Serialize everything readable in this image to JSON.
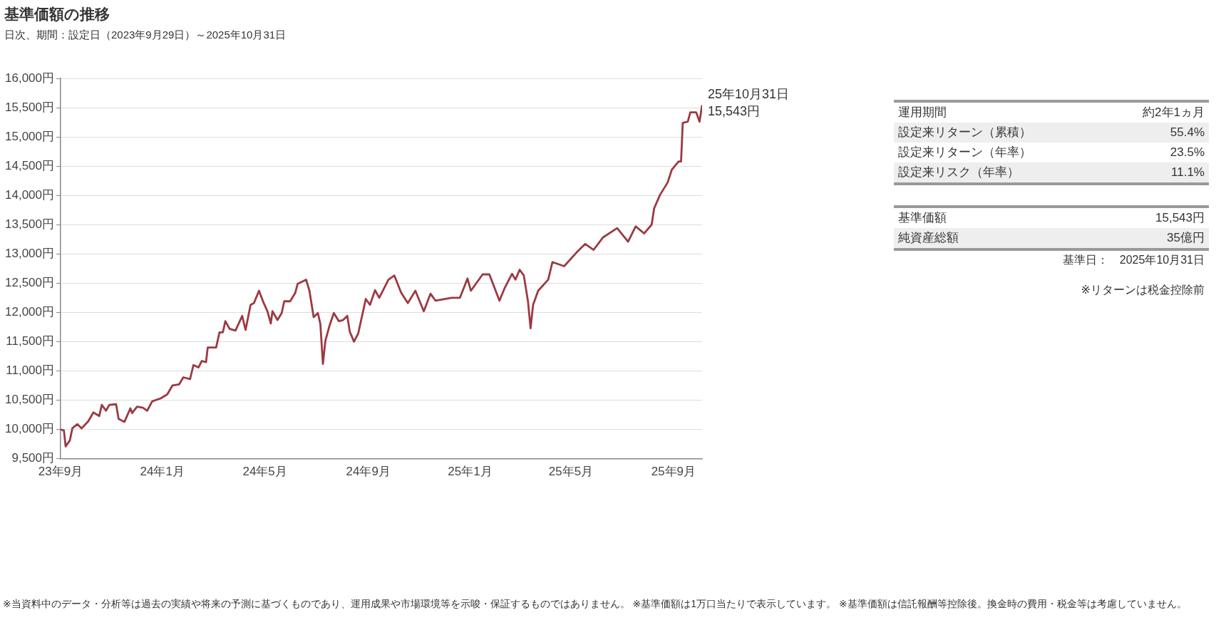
{
  "chart_data": [
    {
      "type": "line",
      "title": "基準価額の推移",
      "subtitle": "日次、期間：設定日（2023年9月29日）～2025年10月31日",
      "series": [
        {
          "color": "#9b3a42",
          "x": [
            "2023-09-29",
            "2023-10-03",
            "2023-10-05",
            "2023-10-10",
            "2023-10-13",
            "2023-10-19",
            "2023-10-24",
            "2023-11-01",
            "2023-11-07",
            "2023-11-14",
            "2023-11-17",
            "2023-11-22",
            "2023-11-26",
            "2023-12-04",
            "2023-12-07",
            "2023-12-14",
            "2023-12-21",
            "2023-12-23",
            "2023-12-29",
            "2024-01-05",
            "2024-01-10",
            "2024-01-16",
            "2024-01-26",
            "2024-02-03",
            "2024-02-09",
            "2024-02-17",
            "2024-02-22",
            "2024-03-01",
            "2024-03-05",
            "2024-03-11",
            "2024-03-15",
            "2024-03-20",
            "2024-03-22",
            "2024-04-01",
            "2024-04-05",
            "2024-04-09",
            "2024-04-12",
            "2024-04-17",
            "2024-04-24",
            "2024-05-02",
            "2024-05-06",
            "2024-05-12",
            "2024-05-16",
            "2024-05-22",
            "2024-05-27",
            "2024-06-01",
            "2024-06-05",
            "2024-06-07",
            "2024-06-13",
            "2024-06-18",
            "2024-06-21",
            "2024-06-28",
            "2024-07-04",
            "2024-07-07",
            "2024-07-17",
            "2024-07-21",
            "2024-07-26",
            "2024-07-31",
            "2024-08-03",
            "2024-08-06",
            "2024-08-09",
            "2024-08-14",
            "2024-08-19",
            "2024-08-25",
            "2024-08-30",
            "2024-09-04",
            "2024-09-07",
            "2024-09-12",
            "2024-09-17",
            "2024-09-26",
            "2024-10-01",
            "2024-10-07",
            "2024-10-12",
            "2024-10-23",
            "2024-10-30",
            "2024-11-07",
            "2024-11-15",
            "2024-11-24",
            "2024-12-04",
            "2024-12-12",
            "2024-12-18",
            "2025-01-06",
            "2025-01-16",
            "2025-01-25",
            "2025-01-29",
            "2025-02-12",
            "2025-02-20",
            "2025-03-04",
            "2025-03-10",
            "2025-03-19",
            "2025-03-23",
            "2025-03-28",
            "2025-04-02",
            "2025-04-07",
            "2025-04-10",
            "2025-04-13",
            "2025-04-19",
            "2025-05-01",
            "2025-05-06",
            "2025-05-20",
            "2025-06-04",
            "2025-06-14",
            "2025-06-24",
            "2025-07-05",
            "2025-07-22",
            "2025-08-04",
            "2025-08-13",
            "2025-08-23",
            "2025-09-01",
            "2025-09-04",
            "2025-09-11",
            "2025-09-20",
            "2025-09-25",
            "2025-10-03",
            "2025-10-06",
            "2025-10-08",
            "2025-10-14",
            "2025-10-17",
            "2025-10-24",
            "2025-10-28",
            "2025-10-31"
          ],
          "values": [
            10000,
            9980,
            9710,
            9810,
            10020,
            10090,
            10020,
            10140,
            10290,
            10230,
            10420,
            10320,
            10420,
            10430,
            10180,
            10130,
            10360,
            10280,
            10390,
            10370,
            10320,
            10480,
            10530,
            10600,
            10750,
            10770,
            10890,
            10860,
            11100,
            11060,
            11170,
            11150,
            11400,
            11400,
            11660,
            11660,
            11850,
            11720,
            11690,
            11940,
            11700,
            12130,
            12160,
            12370,
            12180,
            12020,
            11810,
            12020,
            11870,
            11990,
            12190,
            12190,
            12330,
            12490,
            12560,
            12370,
            11920,
            11990,
            11800,
            11120,
            11520,
            11780,
            11990,
            11850,
            11870,
            11940,
            11670,
            11500,
            11640,
            12230,
            12130,
            12380,
            12250,
            12560,
            12630,
            12340,
            12160,
            12370,
            12020,
            12320,
            12200,
            12250,
            12250,
            12580,
            12370,
            12650,
            12650,
            12200,
            12410,
            12660,
            12560,
            12730,
            12630,
            12180,
            11730,
            12130,
            12370,
            12560,
            12860,
            12790,
            13030,
            13170,
            13070,
            13280,
            13440,
            13210,
            13470,
            13350,
            13500,
            13780,
            14010,
            14220,
            14440,
            14580,
            14580,
            15240,
            15260,
            15420,
            15420,
            15260,
            15543
          ]
        }
      ],
      "xlim": [
        "2023-09-29",
        "2025-10-31"
      ],
      "xticks": [
        {
          "value": "2023-09-29",
          "label": "23年9月"
        },
        {
          "value": "2024-01-28",
          "label": "24年1月"
        },
        {
          "value": "2024-05-29",
          "label": "24年5月"
        },
        {
          "value": "2024-09-29",
          "label": "24年9月"
        },
        {
          "value": "2025-01-28",
          "label": "25年1月"
        },
        {
          "value": "2025-05-28",
          "label": "25年5月"
        },
        {
          "value": "2025-09-27",
          "label": "25年9月"
        }
      ],
      "ylim": [
        9500,
        16000
      ],
      "yticks": [
        {
          "value": 9500,
          "label": "9,500円"
        },
        {
          "value": 10000,
          "label": "10,000円"
        },
        {
          "value": 10500,
          "label": "10,500円"
        },
        {
          "value": 11000,
          "label": "11,000円"
        },
        {
          "value": 11500,
          "label": "11,500円"
        },
        {
          "value": 12000,
          "label": "12,000円"
        },
        {
          "value": 12500,
          "label": "12,500円"
        },
        {
          "value": 13000,
          "label": "13,000円"
        },
        {
          "value": 13500,
          "label": "13,500円"
        },
        {
          "value": 14000,
          "label": "14,000円"
        },
        {
          "value": 14500,
          "label": "14,500円"
        },
        {
          "value": 15000,
          "label": "15,000円"
        },
        {
          "value": 15500,
          "label": "15,500円"
        },
        {
          "value": 16000,
          "label": "16,000円"
        }
      ],
      "grid": "y",
      "legend": false,
      "marker": "none",
      "line_style": "solid",
      "annotations": [
        {
          "text": "25年10月31日\n15,543円",
          "x": "2025-10-31",
          "y": 15543
        },
        "※当資料中のデータ・分析等は過去の実績や将来の予測に基づくものであり、運用成果や市場環境等を示唆・保証するものではありません。 ※基準価額は1万口当たりで表示しています。 ※基準価額は信託報酬等控除後。換金時の費用・税金等は考慮していません。"
      ]
    },
    {
      "type": "other",
      "categories": [
        "運用期間",
        "設定来リターン（累積）",
        "設定来リターン（年率）",
        "設定来リスク（年率）"
      ],
      "value_labels": [
        "約2年1ヵ月",
        "55.4%",
        "23.5%",
        "11.1%"
      ]
    },
    {
      "type": "other",
      "categories": [
        "基準価額",
        "純資産総額"
      ],
      "value_labels": [
        "15,543円",
        "35億円"
      ],
      "annotations": [
        "基準日：　2025年10月31日",
        "※リターンは税金控除前"
      ]
    }
  ]
}
